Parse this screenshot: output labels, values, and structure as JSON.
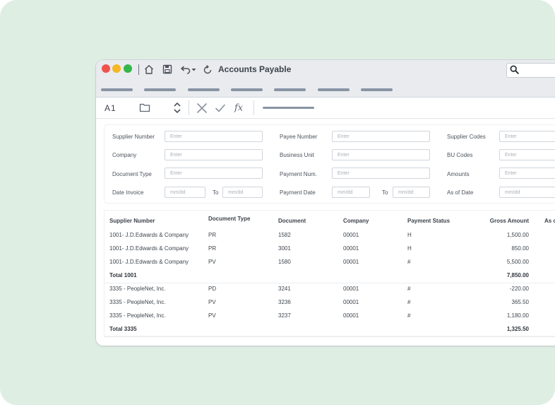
{
  "window": {
    "title": "Accounts Payable",
    "traffic_lights": [
      "#f0534c",
      "#f5b824",
      "#35b64a"
    ]
  },
  "toolbar": {
    "icons": [
      "home-icon",
      "save-icon",
      "undo-icon",
      "chevron-down-icon",
      "refresh-icon",
      "search-icon"
    ]
  },
  "formula_bar": {
    "cell_ref": "A1",
    "icons": [
      "folder-icon",
      "stepper-icon",
      "cancel-icon",
      "confirm-icon",
      "function-icon"
    ]
  },
  "filters": {
    "supplier_number": {
      "label": "Supplier Number",
      "placeholder": "Enter"
    },
    "company": {
      "label": "Company",
      "placeholder": "Enter"
    },
    "document_type": {
      "label": "Document Type",
      "placeholder": "Enter"
    },
    "date_invoice": {
      "label": "Date Invoice",
      "from_placeholder": "mm/dd",
      "to_label": "To",
      "to_placeholder": "mm/dd"
    },
    "payee_number": {
      "label": "Payee Number",
      "placeholder": "Enter"
    },
    "business_unit": {
      "label": "Business Unit",
      "placeholder": "Enter"
    },
    "payment_num": {
      "label": "Payment Num.",
      "placeholder": "Enter"
    },
    "payment_date": {
      "label": "Payment Date",
      "from_placeholder": "mm/dd",
      "to_label": "To",
      "to_placeholder": "mm/dd"
    },
    "supplier_codes": {
      "label": "Supplier Codes",
      "placeholder": "Enter"
    },
    "bu_codes": {
      "label": "BU Codes",
      "placeholder": "Enter"
    },
    "amounts": {
      "label": "Amounts",
      "placeholder": "Enter"
    },
    "as_of_date": {
      "label": "As of Date",
      "placeholder": "mm/dd"
    }
  },
  "table": {
    "columns": [
      "Supplier Number",
      "Document Type",
      "Document",
      "Company",
      "Payment Status",
      "Gross Amount",
      "As of"
    ],
    "rows": [
      {
        "supplier": "1001- J.D.Edwards & Company",
        "doc_type": "PR",
        "document": "1582",
        "company": "00001",
        "status": "H",
        "gross": "1,500.00"
      },
      {
        "supplier": "1001- J.D.Edwards & Company",
        "doc_type": "PR",
        "document": "3001",
        "company": "00001",
        "status": "H",
        "gross": "850.00"
      },
      {
        "supplier": "1001- J.D.Edwards & Company",
        "doc_type": "PV",
        "document": "1580",
        "company": "00001",
        "status": "#",
        "gross": "5,500.00"
      },
      {
        "total_label": "Total 1001",
        "gross": "7,850.00"
      },
      {
        "supplier": "3335 - PeopleNet, Inc.",
        "doc_type": "PD",
        "document": "3241",
        "company": "00001",
        "status": "#",
        "gross": "-220.00"
      },
      {
        "supplier": "3335 - PeopleNet, Inc.",
        "doc_type": "PV",
        "document": "3236",
        "company": "00001",
        "status": "#",
        "gross": "365.50"
      },
      {
        "supplier": "3335 - PeopleNet, Inc.",
        "doc_type": "PV",
        "document": "3237",
        "company": "00001",
        "status": "#",
        "gross": "1,180.00"
      },
      {
        "total_label": "Total 3335",
        "gross": "1,325.50"
      }
    ]
  }
}
